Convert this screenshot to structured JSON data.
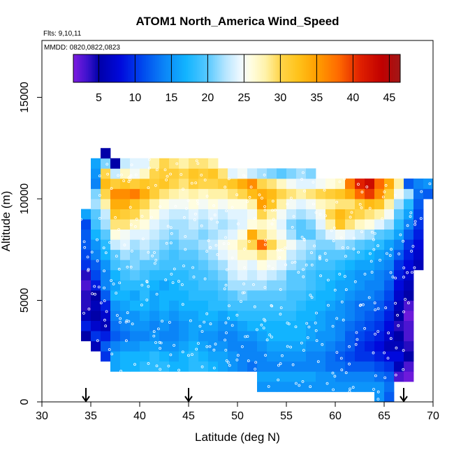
{
  "chart_data": {
    "type": "heatmap",
    "title": "ATOM1 North_America Wind_Speed",
    "flights_label": "Flts: 9,10,11",
    "dates_label": "MMDD: 0820,0822,0823",
    "xlabel": "Latitude (deg N)",
    "ylabel": "Altitude (m)",
    "xlim": [
      30,
      70
    ],
    "ylim": [
      0,
      17800
    ],
    "x_ticks": [
      30,
      35,
      40,
      45,
      50,
      55,
      60,
      65,
      70
    ],
    "y_ticks": [
      0,
      5000,
      10000,
      15000
    ],
    "colorbar": {
      "min": 1.5,
      "max": 46.5,
      "ticks": [
        5,
        10,
        15,
        20,
        25,
        30,
        35,
        40,
        45
      ],
      "stops": [
        [
          1.5,
          "#7d1ce0"
        ],
        [
          3.5,
          "#3b12cc"
        ],
        [
          5,
          "#0000a8"
        ],
        [
          8,
          "#0009dc"
        ],
        [
          11,
          "#0048ee"
        ],
        [
          14,
          "#0b84f7"
        ],
        [
          17,
          "#12b4ff"
        ],
        [
          20,
          "#58c8ff"
        ],
        [
          22.5,
          "#b8e6ff"
        ],
        [
          24.5,
          "#eef8ff"
        ],
        [
          26,
          "#fffde0"
        ],
        [
          28,
          "#fff2a8"
        ],
        [
          30,
          "#ffd54a"
        ],
        [
          32.5,
          "#ffc21a"
        ],
        [
          35,
          "#ff9f00"
        ],
        [
          38,
          "#ff6a00"
        ],
        [
          41,
          "#e02000"
        ],
        [
          44,
          "#c00000"
        ],
        [
          46.5,
          "#a01818"
        ]
      ]
    },
    "arrow_latitudes": [
      34.5,
      45,
      67
    ],
    "grid": false,
    "cell_size": {
      "lat_deg": 1,
      "alt_m": 500
    },
    "columns": [
      {
        "lat": 34,
        "alt_range": [
          3000,
          9500
        ],
        "values": [
          5,
          9,
          6,
          4,
          4,
          3,
          4,
          10,
          11,
          12,
          12,
          11,
          16
        ]
      },
      {
        "lat": 35,
        "alt_range": [
          2500,
          12000
        ],
        "values": [
          6,
          10,
          7,
          5,
          6,
          5,
          9,
          11,
          12,
          14,
          15,
          17,
          19,
          20,
          22,
          21,
          14,
          15,
          16
        ]
      },
      {
        "lat": 36,
        "alt_range": [
          2000,
          12500
        ],
        "values": [
          10,
          12,
          9,
          6,
          7,
          9,
          12,
          14,
          14,
          15,
          17,
          18,
          20,
          22,
          23,
          28,
          30,
          33,
          30,
          21,
          5
        ]
      },
      {
        "lat": 37,
        "alt_range": [
          1500,
          12500
        ],
        "values": [
          16,
          16,
          14,
          12,
          13,
          14,
          15,
          17,
          16,
          17,
          19,
          20,
          23,
          26,
          29,
          32,
          34,
          36,
          31,
          23,
          5
        ]
      },
      {
        "lat": 38,
        "alt_range": [
          1500,
          12000
        ],
        "values": [
          17,
          17,
          15,
          13,
          14,
          15,
          16,
          17,
          18,
          19,
          20,
          22,
          24,
          25,
          29,
          31,
          34,
          36,
          32,
          27,
          23
        ]
      },
      {
        "lat": 39,
        "alt_range": [
          1500,
          12000
        ],
        "values": [
          17,
          17,
          15,
          14,
          15,
          15,
          17,
          16,
          18,
          20,
          21,
          21,
          22,
          24,
          27,
          30,
          32,
          37,
          31,
          25,
          24
        ]
      },
      {
        "lat": 40,
        "alt_range": [
          1500,
          12000
        ],
        "values": [
          18,
          17,
          16,
          14,
          15,
          16,
          17,
          18,
          18,
          19,
          20,
          22,
          23,
          24,
          26,
          28,
          30,
          34,
          32,
          27,
          24
        ]
      },
      {
        "lat": 41,
        "alt_range": [
          1500,
          12000
        ],
        "values": [
          18,
          18,
          16,
          15,
          14,
          15,
          16,
          16,
          17,
          18,
          20,
          21,
          22,
          23,
          24,
          26,
          28,
          31,
          31,
          30,
          28
        ]
      },
      {
        "lat": 42,
        "alt_range": [
          1500,
          12000
        ],
        "values": [
          18,
          17,
          15,
          14,
          15,
          16,
          17,
          17,
          16,
          18,
          19,
          20,
          21,
          22,
          23,
          24,
          26,
          29,
          32,
          31,
          30
        ]
      },
      {
        "lat": 43,
        "alt_range": [
          1500,
          12000
        ],
        "values": [
          17,
          16,
          15,
          14,
          14,
          15,
          16,
          17,
          17,
          18,
          19,
          19,
          20,
          21,
          22,
          23,
          25,
          28,
          30,
          31,
          29
        ]
      },
      {
        "lat": 44,
        "alt_range": [
          1500,
          12000
        ],
        "values": [
          17,
          17,
          16,
          15,
          15,
          16,
          17,
          17,
          18,
          18,
          19,
          20,
          21,
          22,
          22,
          23,
          25,
          27,
          29,
          30,
          28
        ]
      },
      {
        "lat": 45,
        "alt_range": [
          1500,
          12000
        ],
        "values": [
          18,
          18,
          17,
          16,
          16,
          16,
          17,
          18,
          18,
          19,
          19,
          20,
          21,
          22,
          23,
          24,
          26,
          28,
          31,
          32,
          29
        ]
      },
      {
        "lat": 46,
        "alt_range": [
          1500,
          12000
        ],
        "values": [
          18,
          17,
          16,
          15,
          16,
          17,
          17,
          18,
          19,
          19,
          20,
          21,
          22,
          21,
          22,
          23,
          25,
          27,
          30,
          31,
          29
        ]
      },
      {
        "lat": 47,
        "alt_range": [
          1500,
          12000
        ],
        "values": [
          17,
          16,
          15,
          15,
          16,
          17,
          18,
          18,
          19,
          20,
          21,
          22,
          23,
          22,
          23,
          24,
          26,
          28,
          30,
          32,
          28
        ]
      },
      {
        "lat": 48,
        "alt_range": [
          1500,
          11500
        ],
        "values": [
          16,
          16,
          15,
          14,
          15,
          16,
          18,
          19,
          20,
          21,
          22,
          24,
          25,
          23,
          22,
          23,
          25,
          28,
          31,
          29
        ]
      },
      {
        "lat": 49,
        "alt_range": [
          1500,
          11500
        ],
        "values": [
          15,
          15,
          14,
          14,
          15,
          17,
          19,
          20,
          22,
          23,
          24,
          25,
          26,
          24,
          23,
          24,
          26,
          29,
          32,
          24
        ]
      },
      {
        "lat": 50,
        "alt_range": [
          1500,
          11500
        ],
        "values": [
          14,
          14,
          14,
          15,
          16,
          18,
          19,
          21,
          22,
          24,
          25,
          27,
          28,
          26,
          24,
          24,
          26,
          30,
          34,
          25
        ]
      },
      {
        "lat": 51,
        "alt_range": [
          1500,
          11500
        ],
        "values": [
          13,
          14,
          14,
          15,
          17,
          18,
          19,
          20,
          22,
          23,
          24,
          27,
          30,
          34,
          26,
          25,
          28,
          33,
          36,
          23
        ]
      },
      {
        "lat": 52,
        "alt_range": [
          500,
          11500
        ],
        "values": [
          15,
          16,
          14,
          14,
          15,
          16,
          17,
          18,
          19,
          20,
          22,
          24,
          26,
          29,
          38,
          29,
          27,
          30,
          35,
          34,
          30,
          22
        ]
      },
      {
        "lat": 53,
        "alt_range": [
          500,
          11500
        ],
        "values": [
          15,
          16,
          14,
          15,
          16,
          17,
          17,
          18,
          19,
          20,
          21,
          23,
          25,
          27,
          30,
          27,
          26,
          28,
          32,
          33,
          29,
          21
        ]
      },
      {
        "lat": 54,
        "alt_range": [
          500,
          11500
        ],
        "values": [
          15,
          16,
          14,
          15,
          16,
          17,
          17,
          18,
          19,
          20,
          21,
          22,
          24,
          26,
          27,
          25,
          24,
          25,
          28,
          30,
          27,
          20
        ]
      },
      {
        "lat": 55,
        "alt_range": [
          500,
          11500
        ],
        "values": [
          15,
          16,
          14,
          15,
          16,
          17,
          17,
          18,
          19,
          19,
          20,
          20,
          22,
          23,
          25,
          22,
          21,
          23,
          25,
          29,
          25,
          21
        ]
      },
      {
        "lat": 56,
        "alt_range": [
          500,
          11500
        ],
        "values": [
          15,
          16,
          14,
          15,
          16,
          17,
          17,
          17,
          18,
          19,
          20,
          20,
          21,
          22,
          23,
          20,
          20,
          22,
          24,
          28,
          24,
          22
        ]
      },
      {
        "lat": 57,
        "alt_range": [
          500,
          11500
        ],
        "values": [
          15,
          16,
          14,
          14,
          15,
          16,
          16,
          17,
          17,
          18,
          19,
          19,
          20,
          21,
          22,
          20,
          21,
          23,
          25,
          29,
          24,
          21
        ]
      },
      {
        "lat": 58,
        "alt_range": [
          500,
          11000
        ],
        "values": [
          15,
          15,
          14,
          14,
          15,
          15,
          16,
          16,
          17,
          17,
          18,
          18,
          19,
          20,
          21,
          22,
          24,
          25,
          27,
          30,
          25
        ]
      },
      {
        "lat": 59,
        "alt_range": [
          500,
          11000
        ],
        "values": [
          15,
          15,
          13,
          13,
          14,
          15,
          15,
          15,
          16,
          17,
          17,
          18,
          19,
          20,
          21,
          24,
          28,
          30,
          28,
          31,
          26
        ]
      },
      {
        "lat": 60,
        "alt_range": [
          500,
          11000
        ],
        "values": [
          15,
          14,
          13,
          12,
          13,
          14,
          14,
          15,
          15,
          16,
          16,
          17,
          18,
          20,
          22,
          25,
          32,
          33,
          29,
          32,
          27
        ]
      },
      {
        "lat": 61,
        "alt_range": [
          500,
          11000
        ],
        "values": [
          15,
          14,
          12,
          11,
          12,
          12,
          13,
          14,
          14,
          15,
          16,
          16,
          17,
          19,
          21,
          24,
          29,
          31,
          29,
          34,
          37
        ]
      },
      {
        "lat": 62,
        "alt_range": [
          500,
          11000
        ],
        "values": [
          15,
          14,
          12,
          10,
          10,
          11,
          12,
          13,
          13,
          14,
          15,
          15,
          16,
          18,
          20,
          23,
          27,
          30,
          31,
          38,
          41
        ]
      },
      {
        "lat": 63,
        "alt_range": [
          500,
          11000
        ],
        "values": [
          15,
          14,
          12,
          10,
          9,
          10,
          11,
          12,
          13,
          14,
          14,
          15,
          16,
          17,
          19,
          22,
          26,
          29,
          33,
          40,
          43
        ]
      },
      {
        "lat": 64,
        "alt_range": [
          0,
          11000
        ],
        "values": [
          15,
          15,
          13,
          11,
          9,
          8,
          9,
          10,
          11,
          12,
          13,
          14,
          14,
          15,
          16,
          18,
          20,
          24,
          28,
          32,
          36,
          38
        ]
      },
      {
        "lat": 65,
        "alt_range": [
          0,
          11000
        ],
        "values": [
          12,
          13,
          12,
          10,
          8,
          6,
          7,
          8,
          9,
          10,
          11,
          12,
          13,
          14,
          15,
          16,
          19,
          22,
          25,
          28,
          31,
          34
        ]
      },
      {
        "lat": 66,
        "alt_range": [
          1000,
          11000
        ],
        "values": [
          3,
          6,
          8,
          6,
          5,
          4,
          5,
          6,
          7,
          8,
          9,
          10,
          12,
          14,
          16,
          18,
          20,
          22,
          25,
          28
        ]
      },
      {
        "lat": 67,
        "alt_range": [
          1000,
          11000
        ],
        "values": [
          2,
          3,
          5,
          4,
          3,
          3,
          2,
          3,
          5,
          6,
          7,
          8,
          9,
          10,
          12,
          14,
          16,
          18,
          22,
          12
        ]
      },
      {
        "lat": 68,
        "alt_range": [
          6500,
          11000
        ],
        "values": [
          6,
          7,
          8,
          9,
          10,
          11,
          12,
          13,
          14
        ]
      },
      {
        "lat": 69,
        "alt_range": [
          10000,
          11000
        ],
        "values": [
          12,
          15
        ]
      }
    ]
  }
}
